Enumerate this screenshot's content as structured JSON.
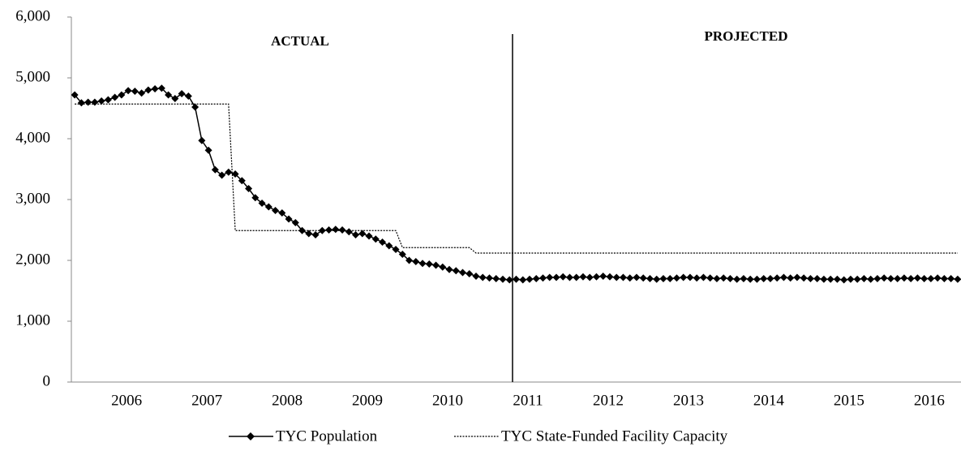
{
  "chart_data": {
    "type": "line",
    "annotations": [
      "ACTUAL",
      "PROJECTED"
    ],
    "categories": [
      null,
      null,
      null,
      null,
      null,
      null,
      null,
      null,
      "2006",
      null,
      null,
      null,
      null,
      null,
      null,
      null,
      null,
      null,
      null,
      null,
      "2007",
      null,
      null,
      null,
      null,
      null,
      null,
      null,
      null,
      null,
      null,
      null,
      "2008",
      null,
      null,
      null,
      null,
      null,
      null,
      null,
      null,
      null,
      null,
      null,
      "2009",
      null,
      null,
      null,
      null,
      null,
      null,
      null,
      null,
      null,
      null,
      null,
      "2010",
      null,
      null,
      null,
      null,
      null,
      null,
      null,
      null,
      null,
      null,
      null,
      "2011",
      null,
      null,
      null,
      null,
      null,
      null,
      null,
      null,
      null,
      null,
      null,
      "2012",
      null,
      null,
      null,
      null,
      null,
      null,
      null,
      null,
      null,
      null,
      null,
      "2013",
      null,
      null,
      null,
      null,
      null,
      null,
      null,
      null,
      null,
      null,
      null,
      "2014",
      null,
      null,
      null,
      null,
      null,
      null,
      null,
      null,
      null,
      null,
      null,
      "2015",
      null,
      null,
      null,
      null,
      null,
      null,
      null,
      null,
      null,
      null,
      null,
      "2016",
      null,
      null,
      null,
      null
    ],
    "series": [
      {
        "name": "TYC Population",
        "color": "#000000",
        "marker": "diamond",
        "dash": "solid",
        "values": [
          4720,
          4590,
          4600,
          4600,
          4620,
          4640,
          4680,
          4720,
          4790,
          4780,
          4750,
          4800,
          4820,
          4830,
          4720,
          4660,
          4740,
          4700,
          4520,
          3970,
          3810,
          3490,
          3400,
          3450,
          3420,
          3310,
          3180,
          3030,
          2940,
          2880,
          2820,
          2780,
          2680,
          2620,
          2490,
          2440,
          2420,
          2490,
          2500,
          2510,
          2500,
          2470,
          2420,
          2440,
          2400,
          2350,
          2300,
          2240,
          2180,
          2100,
          2000,
          1980,
          1950,
          1940,
          1920,
          1890,
          1850,
          1830,
          1800,
          1780,
          1740,
          1720,
          1710,
          1700,
          1690,
          1680,
          1690,
          1680,
          1690,
          1700,
          1710,
          1720,
          1720,
          1730,
          1720,
          1720,
          1730,
          1720,
          1730,
          1740,
          1730,
          1720,
          1720,
          1710,
          1720,
          1710,
          1700,
          1690,
          1700,
          1700,
          1710,
          1720,
          1720,
          1710,
          1720,
          1710,
          1700,
          1710,
          1700,
          1690,
          1700,
          1690,
          1690,
          1700,
          1700,
          1710,
          1720,
          1710,
          1720,
          1710,
          1700,
          1700,
          1690,
          1690,
          1690,
          1680,
          1690,
          1690,
          1700,
          1690,
          1700,
          1710,
          1700,
          1700,
          1710,
          1700,
          1710,
          1700,
          1700,
          1710,
          1700,
          1700,
          1690
        ]
      },
      {
        "name": "TYC State-Funded Facility Capacity",
        "color": "#000000",
        "marker": "none",
        "dash": "dotted",
        "values": [
          4570,
          4570,
          4570,
          4570,
          4570,
          4570,
          4570,
          4570,
          4570,
          4570,
          4570,
          4570,
          4570,
          4570,
          4570,
          4570,
          4570,
          4570,
          4570,
          4570,
          4570,
          4570,
          4570,
          4570,
          2490,
          2490,
          2490,
          2490,
          2490,
          2490,
          2490,
          2490,
          2490,
          2490,
          2490,
          2490,
          2490,
          2490,
          2490,
          2490,
          2490,
          2490,
          2490,
          2490,
          2490,
          2490,
          2490,
          2490,
          2490,
          2210,
          2210,
          2210,
          2210,
          2210,
          2210,
          2210,
          2210,
          2210,
          2210,
          2210,
          2120,
          2120,
          2120,
          2120,
          2120,
          2120,
          2120,
          2120,
          2120,
          2120,
          2120,
          2120,
          2120,
          2120,
          2120,
          2120,
          2120,
          2120,
          2120,
          2120,
          2120,
          2120,
          2120,
          2120,
          2120,
          2120,
          2120,
          2120,
          2120,
          2120,
          2120,
          2120,
          2120,
          2120,
          2120,
          2120,
          2120,
          2120,
          2120,
          2120,
          2120,
          2120,
          2120,
          2120,
          2120,
          2120,
          2120,
          2120,
          2120,
          2120,
          2120,
          2120,
          2120,
          2120,
          2120,
          2120,
          2120,
          2120,
          2120,
          2120,
          2120,
          2120,
          2120,
          2120,
          2120,
          2120,
          2120,
          2120,
          2120,
          2120,
          2120,
          2120,
          2120
        ]
      }
    ],
    "ylim": [
      0,
      6000
    ],
    "yticks": [
      0,
      {
        "value": 1000,
        "label": "1,000"
      },
      {
        "value": 2000,
        "label": "2,000"
      },
      {
        "value": 3000,
        "label": "3,000"
      },
      {
        "value": 4000,
        "label": "4,000"
      },
      {
        "value": 5000,
        "label": "5,000"
      },
      {
        "value": 6000,
        "label": "6,000"
      }
    ],
    "grid": false,
    "legend": "bottom"
  }
}
